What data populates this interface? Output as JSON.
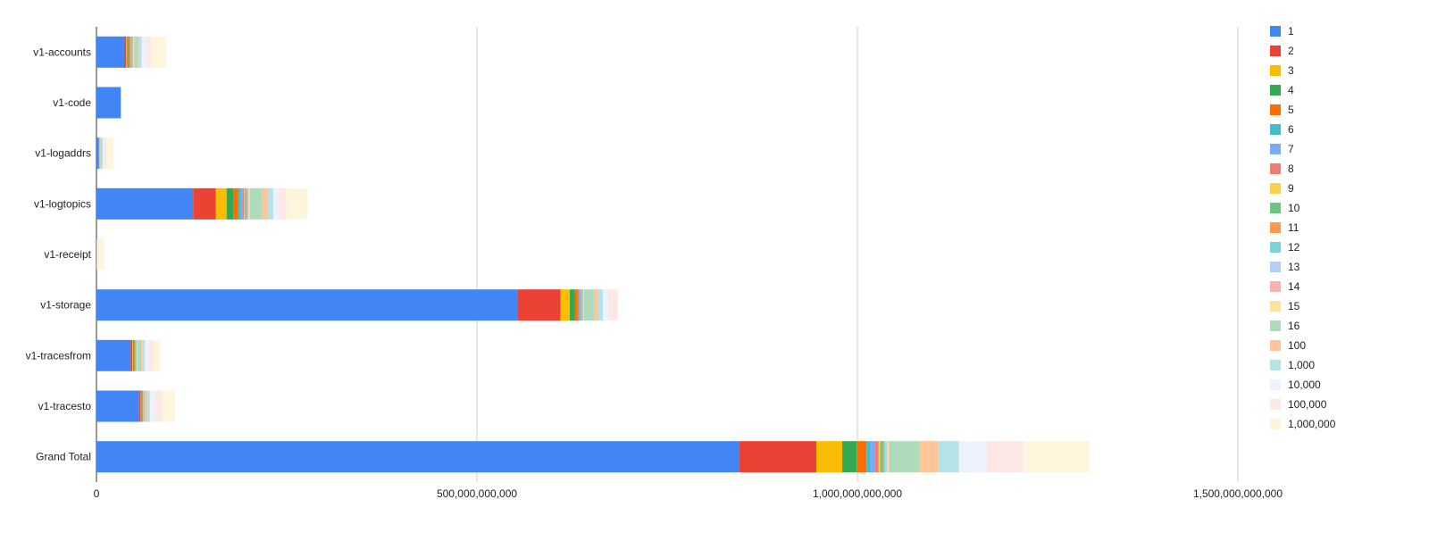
{
  "chart_data": {
    "type": "bar",
    "orientation": "horizontal",
    "stacked": true,
    "title": "",
    "xlabel": "",
    "ylabel": "",
    "xlim": [
      0,
      1500000000000
    ],
    "x_ticks": [
      0,
      500000000000,
      1000000000000,
      1500000000000
    ],
    "x_tick_labels": [
      "0",
      "500,000,000,000",
      "1,000,000,000,000",
      "1,500,000,000,000"
    ],
    "grid": true,
    "legend_position": "right",
    "categories": [
      "v1-accounts",
      "v1-code",
      "v1-logaddrs",
      "v1-logtopics",
      "v1-receipt",
      "v1-storage",
      "v1-tracesfrom",
      "v1-tracesto",
      "Grand Total"
    ],
    "series": [
      {
        "name": "1",
        "color": "#4285F4",
        "values": [
          37000000000.0,
          32000000000.0,
          3000000000.0,
          127000000000.0,
          200000000.0,
          554000000000.0,
          45000000000.0,
          56000000000.0,
          845000000000.0
        ]
      },
      {
        "name": "2",
        "color": "#EA4335",
        "values": [
          2000000000.0,
          100000000.0,
          200000000.0,
          30000000000.0,
          0,
          56000000000.0,
          2000000000.0,
          2000000000.0,
          101000000000.0
        ]
      },
      {
        "name": "3",
        "color": "#FBBC04",
        "values": [
          1500000000.0,
          0,
          200000000.0,
          14000000000.0,
          0,
          12000000000.0,
          1000000000.0,
          800000000.0,
          34000000000.0
        ]
      },
      {
        "name": "4",
        "color": "#34A853",
        "values": [
          1500000000.0,
          0,
          200000000.0,
          9000000000.0,
          0,
          7000000000.0,
          1000000000.0,
          800000000.0,
          19000000000.0
        ]
      },
      {
        "name": "5",
        "color": "#FF6D01",
        "values": [
          1000000000.0,
          0,
          200000000.0,
          6000000000.0,
          0,
          3500000000.0,
          1000000000.0,
          800000000.0,
          13000000000.0
        ]
      },
      {
        "name": "6",
        "color": "#46BDC6",
        "values": [
          1000000000.0,
          0,
          200000000.0,
          3000000000.0,
          0,
          1500000000.0,
          500000000.0,
          500000000.0,
          5000000000.0
        ]
      },
      {
        "name": "7",
        "color": "#7BAAF7",
        "values": [
          1000000000.0,
          0,
          200000000.0,
          3000000000.0,
          0,
          1500000000.0,
          500000000.0,
          500000000.0,
          6000000000.0
        ]
      },
      {
        "name": "8",
        "color": "#F07B72",
        "values": [
          500000000.0,
          0,
          100000000.0,
          2000000000.0,
          0,
          1000000000.0,
          500000000.0,
          500000000.0,
          5000000000.0
        ]
      },
      {
        "name": "9",
        "color": "#FCD04F",
        "values": [
          500000000.0,
          0,
          100000000.0,
          1000000000.0,
          0,
          500000000.0,
          300000000.0,
          300000000.0,
          2000000000.0
        ]
      },
      {
        "name": "10",
        "color": "#71C287",
        "values": [
          1000000000.0,
          0,
          100000000.0,
          2000000000.0,
          0,
          1000000000.0,
          500000000.0,
          500000000.0,
          3500000000.0
        ]
      },
      {
        "name": "11",
        "color": "#FF994D",
        "values": [
          500000000.0,
          0,
          100000000.0,
          1000000000.0,
          0,
          500000000.0,
          300000000.0,
          300000000.0,
          1000000000.0
        ]
      },
      {
        "name": "12",
        "color": "#7ED1D7",
        "values": [
          500000000.0,
          0,
          100000000.0,
          1000000000.0,
          0,
          500000000.0,
          300000000.0,
          300000000.0,
          2000000000.0
        ]
      },
      {
        "name": "13",
        "color": "#B3CEFB",
        "values": [
          500000000.0,
          0,
          100000000.0,
          1000000000.0,
          0,
          500000000.0,
          300000000.0,
          300000000.0,
          2000000000.0
        ]
      },
      {
        "name": "14",
        "color": "#F7B4AE",
        "values": [
          500000000.0,
          0,
          100000000.0,
          500000000.0,
          0,
          500000000.0,
          300000000.0,
          300000000.0,
          1000000000.0
        ]
      },
      {
        "name": "15",
        "color": "#FDE49B",
        "values": [
          500000000.0,
          0,
          100000000.0,
          1000000000.0,
          0,
          500000000.0,
          300000000.0,
          300000000.0,
          2000000000.0
        ]
      },
      {
        "name": "16",
        "color": "#AEDCBA",
        "values": [
          5000000000.0,
          0,
          2000000000.0,
          16000000000.0,
          0,
          14000000000.0,
          5000000000.0,
          2000000000.0,
          40000000000.0
        ]
      },
      {
        "name": "100",
        "color": "#FFC599",
        "values": [
          2000000000.0,
          0,
          500000000.0,
          8000000000.0,
          0,
          5000000000.0,
          2000000000.0,
          1000000000.0,
          25000000000.0
        ]
      },
      {
        "name": "1,000",
        "color": "#B5E3E8",
        "values": [
          3000000000.0,
          0,
          1000000000.0,
          7000000000.0,
          0,
          6000000000.0,
          3000000000.0,
          3000000000.0,
          27000000000.0
        ]
      },
      {
        "name": "10,000",
        "color": "#ECF2FE",
        "values": [
          5000000000.0,
          0,
          2000000000.0,
          7000000000.0,
          0,
          7000000000.0,
          5000000000.0,
          6000000000.0,
          36000000000.0
        ]
      },
      {
        "name": "100,000",
        "color": "#FDE8E6",
        "values": [
          7000000000.0,
          0,
          3000000000.0,
          10000000000.0,
          1000000000.0,
          12000000000.0,
          7000000000.0,
          10000000000.0,
          49000000000.0
        ]
      },
      {
        "name": "1,000,000",
        "color": "#FEF5DD",
        "values": [
          20000000000.0,
          0,
          9000000000.0,
          28000000000.0,
          9000000000.0,
          1000000000.0,
          8000000000.0,
          17000000000.0,
          87000000000.0
        ]
      }
    ]
  }
}
